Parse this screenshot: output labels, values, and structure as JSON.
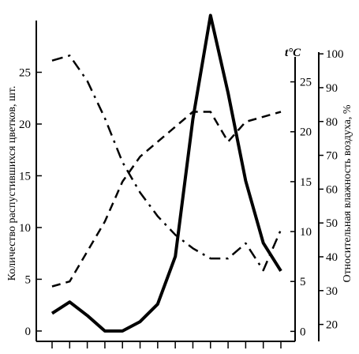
{
  "chart_data": {
    "type": "line",
    "x": [
      1,
      2,
      3,
      4,
      5,
      6,
      7,
      8,
      9,
      10,
      11,
      12,
      13,
      14
    ],
    "left_axis": {
      "label": "Количество распустившихся цветков, шт.",
      "ticks": [
        0,
        5,
        10,
        15,
        20,
        25
      ],
      "ylim": [
        -1.0,
        30.0
      ]
    },
    "temp_axis": {
      "unit_label": "t°C",
      "ticks": [
        0,
        5,
        10,
        15,
        20,
        25
      ],
      "ylim": [
        -1.0,
        27.5
      ]
    },
    "humidity_axis": {
      "label": "Относительная влажность воздуха, %",
      "ticks": [
        20,
        30,
        40,
        50,
        60,
        70,
        80,
        90,
        100
      ],
      "ylim": [
        15.0,
        100.5
      ]
    },
    "series": [
      {
        "axis": "left",
        "style": "solid",
        "values": [
          1.7,
          2.8,
          1.5,
          0,
          0,
          0.9,
          2.6,
          7.2,
          20.5,
          30.5,
          23.0,
          14.5,
          8.5,
          5.8
        ]
      },
      {
        "axis": "humidity",
        "style": "dash-dot",
        "values": [
          98,
          99.5,
          92,
          81,
          68,
          59,
          52,
          46.5,
          42.5,
          39.5,
          39.5,
          44,
          36,
          48
        ]
      },
      {
        "axis": "temp",
        "style": "dashed",
        "values": [
          4.5,
          5,
          8,
          11,
          15,
          17.5,
          19,
          20.5,
          22,
          22,
          19,
          21,
          21.5,
          22
        ]
      }
    ],
    "grid": false,
    "legend": "none"
  }
}
